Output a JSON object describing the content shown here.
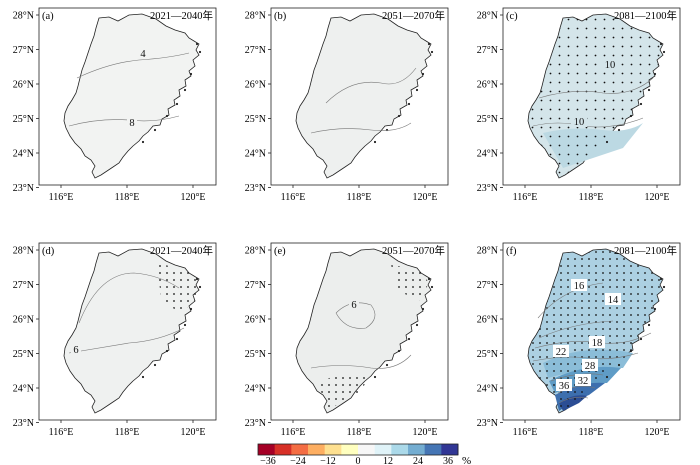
{
  "panels": [
    {
      "tag": "(a)",
      "period": "2021—2040年",
      "fill": "#f2f3f2",
      "contours": [
        "4",
        "8"
      ]
    },
    {
      "tag": "(b)",
      "period": "2051—2070年",
      "fill": "#eef0ef",
      "contours": []
    },
    {
      "tag": "(c)",
      "period": "2081—2100年",
      "fill": "#d4e5ea",
      "contours": [
        "10",
        "10"
      ]
    },
    {
      "tag": "(d)",
      "period": "2021—2040年",
      "fill": "#eff1f0",
      "contours": [
        "6"
      ]
    },
    {
      "tag": "(e)",
      "period": "2051—2070年",
      "fill": "#eceeed",
      "contours": [
        "6"
      ]
    },
    {
      "tag": "(f)",
      "period": "2081—2100年",
      "fill": "#acd0e2",
      "contours": [
        "16",
        "14",
        "18",
        "22",
        "28",
        "36",
        "32"
      ]
    }
  ],
  "axes": {
    "lat_labels": [
      "28°N",
      "27°N",
      "26°N",
      "25°N",
      "24°N",
      "23°N"
    ],
    "lon_labels": [
      "116°E",
      "118°E",
      "120°E"
    ]
  },
  "colorbar": {
    "ticks": [
      "−36",
      "−24",
      "−12",
      "0",
      "12",
      "24",
      "36"
    ],
    "unit": "%",
    "colors": [
      "#a50026",
      "#d73027",
      "#f46d43",
      "#fdae61",
      "#fee090",
      "#ffffbf",
      "#f7f7f7",
      "#e0f3f8",
      "#abd9e9",
      "#74add1",
      "#4575b4",
      "#313695"
    ]
  }
}
